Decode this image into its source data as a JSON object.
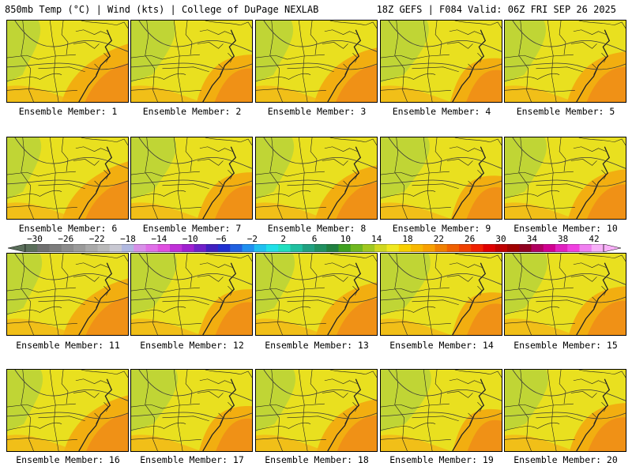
{
  "header": {
    "left": "850mb Temp (°C) | Wind (kts) | College of DuPage NEXLAB",
    "right": "18Z GEFS | F084 Valid: 06Z FRI SEP 26 2025"
  },
  "members": [
    {
      "label": "Ensemble Member: 1"
    },
    {
      "label": "Ensemble Member: 2"
    },
    {
      "label": "Ensemble Member: 3"
    },
    {
      "label": "Ensemble Member: 4"
    },
    {
      "label": "Ensemble Member: 5"
    },
    {
      "label": "Ensemble Member: 6"
    },
    {
      "label": "Ensemble Member: 7"
    },
    {
      "label": "Ensemble Member: 8"
    },
    {
      "label": "Ensemble Member: 9"
    },
    {
      "label": "Ensemble Member: 10"
    },
    {
      "label": "Ensemble Member: 11"
    },
    {
      "label": "Ensemble Member: 12"
    },
    {
      "label": "Ensemble Member: 13"
    },
    {
      "label": "Ensemble Member: 14"
    },
    {
      "label": "Ensemble Member: 15"
    },
    {
      "label": "Ensemble Member: 16"
    },
    {
      "label": "Ensemble Member: 17"
    },
    {
      "label": "Ensemble Member: 18"
    },
    {
      "label": "Ensemble Member: 19"
    },
    {
      "label": "Ensemble Member: 20"
    }
  ],
  "colorbar": {
    "labels": [
      "−30",
      "−26",
      "−22",
      "−18",
      "−14",
      "−10",
      "−6",
      "−2",
      "2",
      "6",
      "10",
      "14",
      "18",
      "22",
      "26",
      "30",
      "34",
      "38",
      "42"
    ],
    "colors": [
      "#5a6e5a",
      "#6f6f6f",
      "#7d7d7d",
      "#8c8c8c",
      "#9a9a9a",
      "#a9a9a9",
      "#b8b8b8",
      "#c8c8d2",
      "#b0b8e0",
      "#d890e8",
      "#e070e8",
      "#e050e0",
      "#c030d8",
      "#a020d0",
      "#7020c8",
      "#4020c0",
      "#2030d0",
      "#2060e0",
      "#2090f0",
      "#20c0f0",
      "#20e0e8",
      "#20e0c0",
      "#20c0a0",
      "#20a080",
      "#209060",
      "#208040",
      "#40a020",
      "#70b820",
      "#a0c820",
      "#d0d820",
      "#f0e820",
      "#f8d000",
      "#f8b800",
      "#f8a000",
      "#f08000",
      "#f06000",
      "#f04000",
      "#f02000",
      "#e00000",
      "#c00000",
      "#a00000",
      "#900020",
      "#b00060",
      "#d00090",
      "#e020c0",
      "#f040e0",
      "#f080f0",
      "#f8b0f8"
    ]
  }
}
